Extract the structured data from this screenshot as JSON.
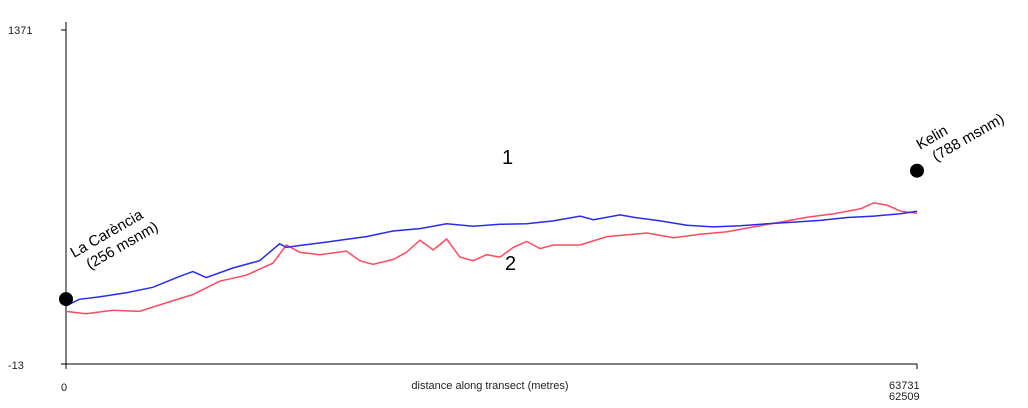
{
  "chart_data": {
    "type": "line",
    "xlabel": "distance along transect (metres)",
    "x_tick_labels": [
      "0",
      "63731",
      "62509"
    ],
    "y_tick_labels": [
      "1371",
      "-13"
    ],
    "ylim": [
      -13,
      1371
    ],
    "xlim": [
      0,
      63731
    ],
    "grid": false,
    "colors": {
      "1": "#2a2af0",
      "2": "#ff4a5e",
      "axis": "#000000"
    },
    "series": [
      {
        "name": "1",
        "x": [
          0,
          1000,
          2500,
          4500,
          6500,
          8500,
          9500,
          10500,
          12500,
          14500,
          16000,
          16500,
          17500,
          19500,
          20500,
          22500,
          24500,
          26500,
          28500,
          30500,
          32500,
          34500,
          36500,
          38500,
          39500,
          41500,
          42500,
          44500,
          46500,
          48500,
          50500,
          52500,
          54500,
          56500,
          58500,
          60500,
          62500,
          63731
        ],
        "y": [
          228,
          255,
          265,
          282,
          305,
          350,
          370,
          345,
          385,
          415,
          485,
          470,
          478,
          492,
          500,
          515,
          538,
          548,
          568,
          558,
          566,
          568,
          580,
          600,
          585,
          605,
          595,
          580,
          562,
          555,
          560,
          568,
          575,
          582,
          594,
          600,
          610,
          620
        ]
      },
      {
        "name": "2",
        "x": [
          0,
          1500,
          3500,
          5500,
          7500,
          9500,
          11500,
          13500,
          15500,
          16500,
          17500,
          19000,
          21000,
          22000,
          23000,
          24500,
          25500,
          26500,
          27500,
          28500,
          29500,
          30500,
          31500,
          32500,
          33500,
          34500,
          35500,
          36500,
          38500,
          40500,
          42500,
          43500,
          45500,
          47500,
          49500,
          51500,
          53500,
          55500,
          57500,
          59500,
          60500,
          61500,
          62500,
          63731
        ],
        "y": [
          205,
          195,
          210,
          205,
          240,
          275,
          330,
          355,
          405,
          480,
          450,
          440,
          455,
          415,
          400,
          420,
          450,
          500,
          460,
          505,
          430,
          415,
          440,
          430,
          470,
          495,
          465,
          480,
          480,
          515,
          525,
          530,
          510,
          525,
          535,
          555,
          575,
          595,
          610,
          630,
          655,
          645,
          620,
          612
        ]
      }
    ],
    "annotations": [
      {
        "text": "La Carència",
        "x": 0,
        "y": 256
      },
      {
        "text": "(256 msnm)",
        "x": 0,
        "y": 256
      },
      {
        "text": "Kelin",
        "x": 63731,
        "y": 788
      },
      {
        "text": "(788 msnm)",
        "x": 63731,
        "y": 788
      }
    ],
    "series_labels": [
      "1",
      "2"
    ]
  }
}
